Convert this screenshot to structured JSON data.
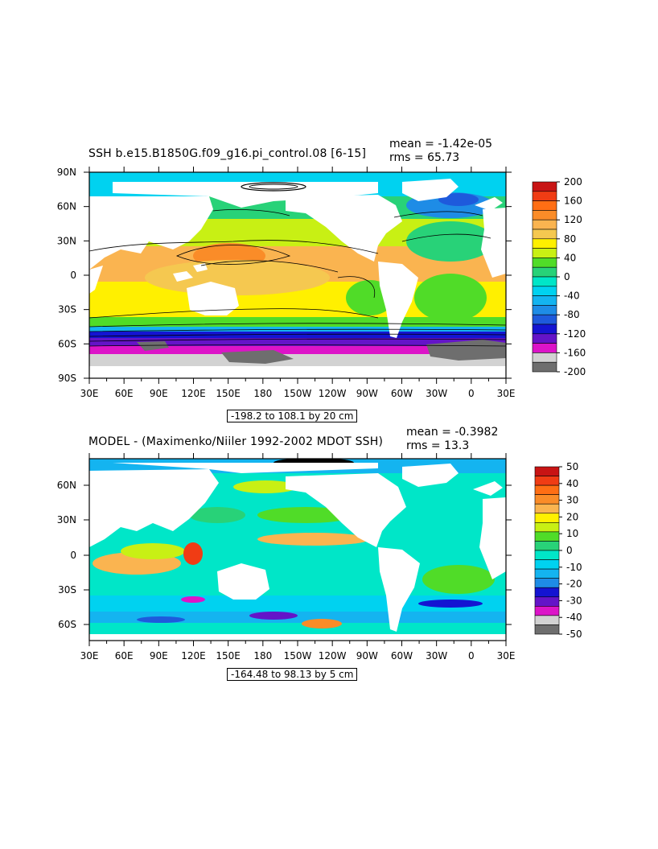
{
  "panels": [
    {
      "title": "SSH b.e15.B1850G.f09_g16.pi_control.08 [6-15]",
      "mean": "mean = -1.42e-05",
      "rms": "rms = 65.73",
      "range_note": "-198.2 to 108.1 by 20 cm",
      "lat_ticks": [
        "90N",
        "60N",
        "30N",
        "0",
        "30S",
        "60S",
        "90S"
      ],
      "lon_ticks": [
        "30E",
        "60E",
        "90E",
        "120E",
        "150E",
        "180",
        "150W",
        "120W",
        "90W",
        "60W",
        "30W",
        "0",
        "30E"
      ],
      "colorbar_labels": [
        "200",
        "160",
        "120",
        "80",
        "40",
        "0",
        "-40",
        "-80",
        "-120",
        "-160",
        "-200"
      ],
      "colorbar_colors": [
        "#c81414",
        "#f03c14",
        "#ff6e14",
        "#fa8c28",
        "#fab450",
        "#f5c850",
        "#fff000",
        "#c8f014",
        "#50dc28",
        "#28d278",
        "#00e6c8",
        "#00d2f0",
        "#14b4f0",
        "#1e8ce6",
        "#1e5adc",
        "#1414d2",
        "#6414c8",
        "#dc14c8",
        "#d2d2d2",
        "#6e6e6e"
      ]
    },
    {
      "title": "MODEL - (Maximenko/Niiler 1992-2002 MDOT SSH)",
      "mean": "mean = -0.3982",
      "rms": "rms = 13.3",
      "range_note": "-164.48 to 98.13 by 5 cm",
      "lat_ticks": [
        "60N",
        "30N",
        "0",
        "30S",
        "60S"
      ],
      "lon_ticks": [
        "30E",
        "60E",
        "90E",
        "120E",
        "150E",
        "180",
        "150W",
        "120W",
        "90W",
        "60W",
        "30W",
        "0",
        "30E"
      ],
      "colorbar_labels": [
        "50",
        "40",
        "30",
        "20",
        "10",
        "0",
        "-10",
        "-20",
        "-30",
        "-40",
        "-50"
      ],
      "colorbar_colors": [
        "#c81414",
        "#f03c14",
        "#ff6e14",
        "#fa8c28",
        "#fab450",
        "#fff000",
        "#c8f014",
        "#50dc28",
        "#28d278",
        "#00e6c8",
        "#00d2f0",
        "#14b4f0",
        "#1e8ce6",
        "#1414d2",
        "#6414c8",
        "#dc14c8",
        "#d2d2d2",
        "#6e6e6e"
      ]
    }
  ],
  "chart_data": [
    {
      "type": "heatmap",
      "title": "SSH b.e15.B1850G.f09_g16.pi_control.08 [6-15]",
      "xlabel": "",
      "ylabel": "",
      "x_range": [
        "30E",
        "30E"
      ],
      "y_range": [
        "90S",
        "90N"
      ],
      "color_levels": [
        -200,
        -180,
        -160,
        -140,
        -120,
        -100,
        -80,
        -60,
        -40,
        -20,
        0,
        20,
        40,
        60,
        80,
        100,
        120,
        140,
        160,
        180,
        200
      ],
      "stats": {
        "mean": -1.42e-05,
        "rms": 65.73
      },
      "contour_range": {
        "min": -198.2,
        "max": 108.1,
        "interval": 20,
        "units": "cm"
      }
    },
    {
      "type": "heatmap",
      "title": "MODEL - (Maximenko/Niiler 1992-2002 MDOT SSH)",
      "xlabel": "",
      "ylabel": "",
      "x_range": [
        "30E",
        "30E"
      ],
      "y_range": [
        "72S",
        "80N"
      ],
      "color_levels": [
        -50,
        -45,
        -40,
        -35,
        -30,
        -25,
        -20,
        -15,
        -10,
        -5,
        0,
        5,
        10,
        15,
        20,
        25,
        30,
        35,
        40,
        45,
        50
      ],
      "stats": {
        "mean": -0.3982,
        "rms": 13.3
      },
      "contour_range": {
        "min": -164.48,
        "max": 98.13,
        "interval": 5,
        "units": "cm"
      }
    }
  ]
}
